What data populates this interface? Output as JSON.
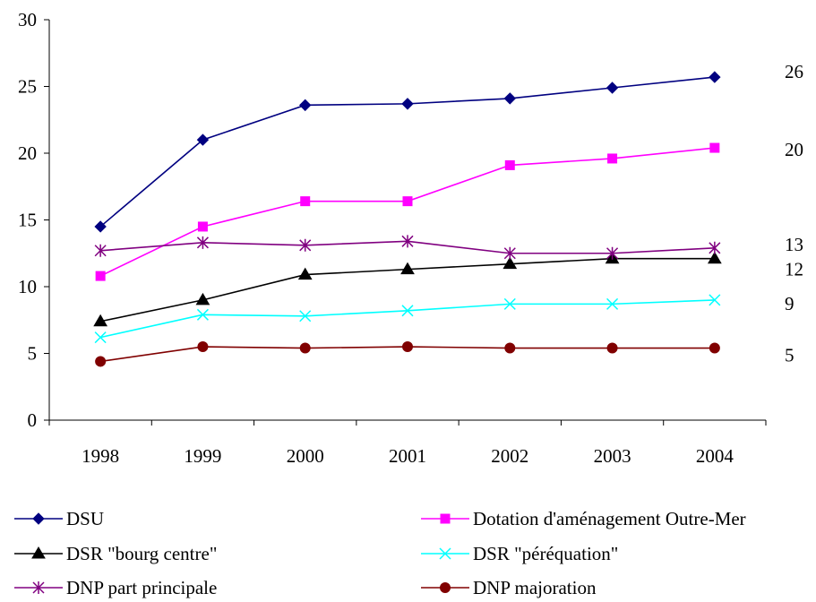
{
  "chart_data": {
    "type": "line",
    "categories": [
      "1998",
      "1999",
      "2000",
      "2001",
      "2002",
      "2003",
      "2004"
    ],
    "ylim": [
      0,
      30
    ],
    "yticks": [
      "0",
      "5",
      "10",
      "15",
      "20",
      "25",
      "30"
    ],
    "grid": false,
    "legend_position": "bottom",
    "series": [
      {
        "name": "DSU",
        "color": "#000080",
        "marker": "diamond",
        "values": [
          14.5,
          21.0,
          23.6,
          23.7,
          24.1,
          24.9,
          25.7
        ],
        "end_label": "26"
      },
      {
        "name": "Dotation d'aménagement Outre-Mer",
        "color": "#ff00ff",
        "marker": "square",
        "values": [
          10.8,
          14.5,
          16.4,
          16.4,
          19.1,
          19.6,
          20.4
        ],
        "end_label": "20"
      },
      {
        "name": "DSR \"bourg centre\"",
        "color": "#000000",
        "marker": "triangle",
        "values": [
          7.4,
          9.0,
          10.9,
          11.3,
          11.7,
          12.1,
          12.1
        ],
        "end_label": "12"
      },
      {
        "name": "DSR \"péréquation\"",
        "color": "#00ffff",
        "marker": "x",
        "values": [
          6.2,
          7.9,
          7.8,
          8.2,
          8.7,
          8.7,
          9.0
        ],
        "end_label": "9"
      },
      {
        "name": "DNP part principale",
        "color": "#800080",
        "marker": "star",
        "values": [
          12.7,
          13.3,
          13.1,
          13.4,
          12.5,
          12.5,
          12.9
        ],
        "end_label": "13"
      },
      {
        "name": "DNP majoration",
        "color": "#800000",
        "marker": "circle",
        "values": [
          4.4,
          5.5,
          5.4,
          5.5,
          5.4,
          5.4,
          5.4
        ],
        "end_label": "5"
      }
    ]
  }
}
